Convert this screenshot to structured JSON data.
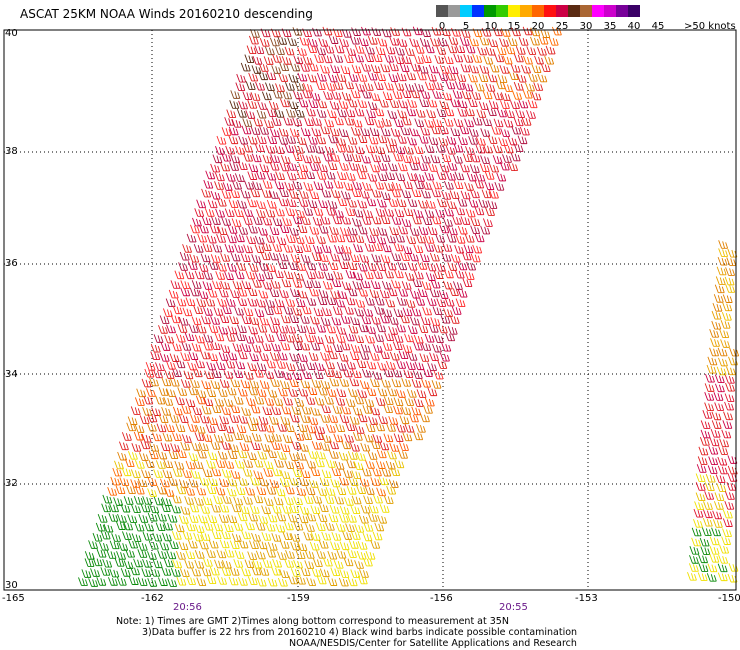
{
  "title": "ASCAT 25KM NOAA Winds 20160210 descending",
  "legend": {
    "labels": [
      "0",
      "5",
      "10",
      "15",
      "20",
      "25",
      "30",
      "35",
      "40",
      "45",
      ">50 knots"
    ],
    "colors": [
      "#555555",
      "#9a9a9a",
      "#00ccff",
      "#0033ff",
      "#009900",
      "#33cc00",
      "#ffee00",
      "#ffaa00",
      "#ff6600",
      "#ff1111",
      "#cc0044",
      "#5a2a12",
      "#aa6633",
      "#ff00ff",
      "#cc00cc",
      "#770099",
      "#3a0066"
    ]
  },
  "map": {
    "lat_labels": [
      "40",
      "38",
      "36",
      "34",
      "32",
      "30"
    ],
    "lon_labels": [
      "-165",
      "-162",
      "-159",
      "-156",
      "-153",
      "-150"
    ],
    "time_labels": [
      "20:56",
      "20:55"
    ],
    "grid": true
  },
  "notes": {
    "line1": "Note: 1) Times are GMT 2)Times along bottom correspond to measurement at 35N",
    "line2": "3)Data buffer is 22 hrs from 20160210 4) Black wind barbs indicate possible contamination",
    "line3": "NOAA/NESDIS/Center for Satellite Applications and Research"
  }
}
